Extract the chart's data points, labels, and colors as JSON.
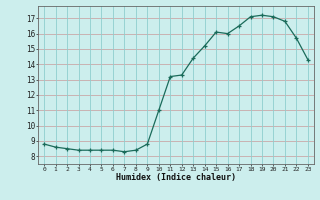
{
  "x": [
    0,
    1,
    2,
    3,
    4,
    5,
    6,
    7,
    8,
    9,
    10,
    11,
    12,
    13,
    14,
    15,
    16,
    17,
    18,
    19,
    20,
    21,
    22,
    23
  ],
  "y": [
    8.8,
    8.6,
    8.5,
    8.4,
    8.4,
    8.4,
    8.4,
    8.3,
    8.4,
    8.8,
    11.0,
    13.2,
    13.3,
    14.4,
    15.2,
    16.1,
    16.0,
    16.5,
    17.1,
    17.2,
    17.1,
    16.8,
    15.7,
    14.3
  ],
  "xlabel": "Humidex (Indice chaleur)",
  "xlim": [
    -0.5,
    23.5
  ],
  "ylim": [
    7.5,
    17.8
  ],
  "yticks": [
    8,
    9,
    10,
    11,
    12,
    13,
    14,
    15,
    16,
    17
  ],
  "xticks": [
    0,
    1,
    2,
    3,
    4,
    5,
    6,
    7,
    8,
    9,
    10,
    11,
    12,
    13,
    14,
    15,
    16,
    17,
    18,
    19,
    20,
    21,
    22,
    23
  ],
  "line_color": "#1a6b5a",
  "marker_color": "#1a6b5a",
  "bg_color": "#cceeed",
  "grid_color_h": "#c9a8a8",
  "grid_color_v": "#8ecece",
  "axis_color": "#666666",
  "tick_label_color": "#222222",
  "xlabel_color": "#111111"
}
